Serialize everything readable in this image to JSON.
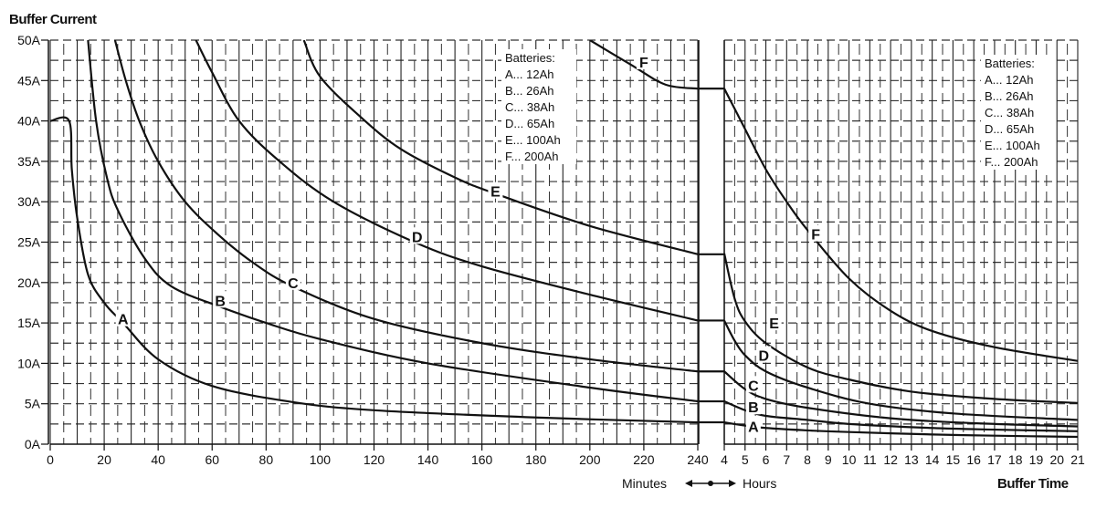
{
  "chart_data": {
    "type": "line",
    "title": "Buffer Current",
    "ylabel": "Buffer Current",
    "xlabel": "Buffer Time",
    "axis_caption": {
      "left": "Minutes",
      "right": "Hours"
    },
    "ylim": [
      0,
      50
    ],
    "yticks": [
      "0A",
      "5A",
      "10A",
      "15A",
      "20A",
      "25A",
      "30A",
      "35A",
      "40A",
      "45A",
      "50A"
    ],
    "grid": true,
    "panels": [
      {
        "name": "minutes",
        "xlim": [
          0,
          240
        ],
        "xticks": [
          "0",
          "20",
          "40",
          "60",
          "80",
          "100",
          "120",
          "140",
          "160",
          "180",
          "200",
          "220",
          "240"
        ],
        "series": [
          {
            "name": "A",
            "points": [
              [
                0,
                40
              ],
              [
                7,
                40
              ],
              [
                8,
                34
              ],
              [
                10,
                28
              ],
              [
                14,
                21
              ],
              [
                20,
                17.5
              ],
              [
                27,
                15
              ],
              [
                40,
                10.5
              ],
              [
                60,
                7.2
              ],
              [
                90,
                5.2
              ],
              [
                120,
                4.2
              ],
              [
                180,
                3.3
              ],
              [
                240,
                2.7
              ]
            ]
          },
          {
            "name": "B",
            "points": [
              [
                14,
                50
              ],
              [
                17,
                40
              ],
              [
                21,
                33
              ],
              [
                25,
                29
              ],
              [
                35,
                23
              ],
              [
                45,
                19.5
              ],
              [
                63,
                17
              ],
              [
                80,
                15
              ],
              [
                100,
                13
              ],
              [
                140,
                10
              ],
              [
                200,
                7
              ],
              [
                240,
                5.3
              ]
            ]
          },
          {
            "name": "C",
            "points": [
              [
                24,
                50
              ],
              [
                28,
                45
              ],
              [
                33,
                40
              ],
              [
                40,
                35
              ],
              [
                50,
                30
              ],
              [
                62,
                26
              ],
              [
                75,
                22.5
              ],
              [
                90,
                19.5
              ],
              [
                120,
                15.5
              ],
              [
                160,
                12.5
              ],
              [
                200,
                10.5
              ],
              [
                240,
                9
              ]
            ]
          },
          {
            "name": "D",
            "points": [
              [
                54,
                50
              ],
              [
                60,
                46
              ],
              [
                70,
                40
              ],
              [
                85,
                35
              ],
              [
                105,
                30
              ],
              [
                135,
                25
              ],
              [
                160,
                22
              ],
              [
                200,
                18.5
              ],
              [
                240,
                15.3
              ]
            ]
          },
          {
            "name": "E",
            "points": [
              [
                94,
                50
              ],
              [
                100,
                45.5
              ],
              [
                115,
                40.5
              ],
              [
                130,
                36.5
              ],
              [
                150,
                33
              ],
              [
                165,
                31
              ],
              [
                200,
                27
              ],
              [
                240,
                23.5
              ]
            ]
          },
          {
            "name": "F",
            "points": [
              [
                200,
                50
              ],
              [
                215,
                47
              ],
              [
                228,
                44.5
              ],
              [
                240,
                44
              ]
            ]
          }
        ],
        "legend": {
          "title": "Batteries:",
          "items": [
            "A... 12Ah",
            "B... 26Ah",
            "C... 38Ah",
            "D... 65Ah",
            "E... 100Ah",
            "F... 200Ah"
          ],
          "placement": "top-right"
        }
      },
      {
        "name": "hours",
        "xlim": [
          4,
          21
        ],
        "xticks": [
          "4",
          "5",
          "6",
          "7",
          "8",
          "9",
          "10",
          "11",
          "12",
          "13",
          "14",
          "15",
          "16",
          "17",
          "18",
          "19",
          "20",
          "21"
        ],
        "series": [
          {
            "name": "A",
            "points": [
              [
                4,
                2.7
              ],
              [
                5,
                2.3
              ],
              [
                6,
                2
              ],
              [
                8,
                1.7
              ],
              [
                10,
                1.5
              ],
              [
                14,
                1.2
              ],
              [
                17,
                1.05
              ],
              [
                21,
                0.9
              ]
            ]
          },
          {
            "name": "B",
            "points": [
              [
                4,
                5.3
              ],
              [
                5,
                4.2
              ],
              [
                6,
                3.5
              ],
              [
                8,
                3
              ],
              [
                10,
                2.5
              ],
              [
                14,
                2
              ],
              [
                17,
                1.8
              ],
              [
                21,
                1.6
              ]
            ]
          },
          {
            "name": "C",
            "points": [
              [
                4,
                9
              ],
              [
                5,
                6.8
              ],
              [
                6,
                5.6
              ],
              [
                8,
                4.5
              ],
              [
                12,
                3.2
              ],
              [
                16,
                2.6
              ],
              [
                21,
                2.2
              ]
            ]
          },
          {
            "name": "D",
            "points": [
              [
                4,
                15.3
              ],
              [
                4.5,
                12.8
              ],
              [
                5,
                11
              ],
              [
                6,
                9
              ],
              [
                8,
                7
              ],
              [
                11,
                5
              ],
              [
                15,
                3.8
              ],
              [
                21,
                3
              ]
            ]
          },
          {
            "name": "E",
            "points": [
              [
                4,
                23.6
              ],
              [
                4.5,
                18
              ],
              [
                5,
                15.2
              ],
              [
                6,
                12.5
              ],
              [
                8,
                9.5
              ],
              [
                10,
                8
              ],
              [
                13,
                6.5
              ],
              [
                17,
                5.6
              ],
              [
                21,
                5.1
              ]
            ]
          },
          {
            "name": "F",
            "points": [
              [
                4,
                44
              ],
              [
                5,
                39
              ],
              [
                6,
                34
              ],
              [
                7,
                30
              ],
              [
                8,
                26.5
              ],
              [
                10,
                20.5
              ],
              [
                12,
                16.5
              ],
              [
                14,
                14
              ],
              [
                17,
                12
              ],
              [
                21,
                10.3
              ]
            ]
          }
        ],
        "legend": {
          "title": "Batteries:",
          "items": [
            "A... 12Ah",
            "B... 26Ah",
            "C... 38Ah",
            "D... 65Ah",
            "E... 100Ah",
            "F... 200Ah"
          ],
          "placement": "top-right"
        }
      }
    ],
    "curve_labels": {
      "minutes": [
        [
          "A",
          27,
          15.5
        ],
        [
          "B",
          63,
          17.8
        ],
        [
          "C",
          90,
          20
        ],
        [
          "D",
          136,
          25.7
        ],
        [
          "E",
          165,
          31.3
        ],
        [
          "F",
          220,
          47.3
        ]
      ],
      "hours": [
        [
          "F",
          8.4,
          26
        ],
        [
          "E",
          6.4,
          15
        ],
        [
          "D",
          5.9,
          11
        ],
        [
          "C",
          5.4,
          7.3
        ],
        [
          "B",
          5.4,
          4.6
        ],
        [
          "A",
          5.4,
          2.2
        ]
      ]
    }
  }
}
